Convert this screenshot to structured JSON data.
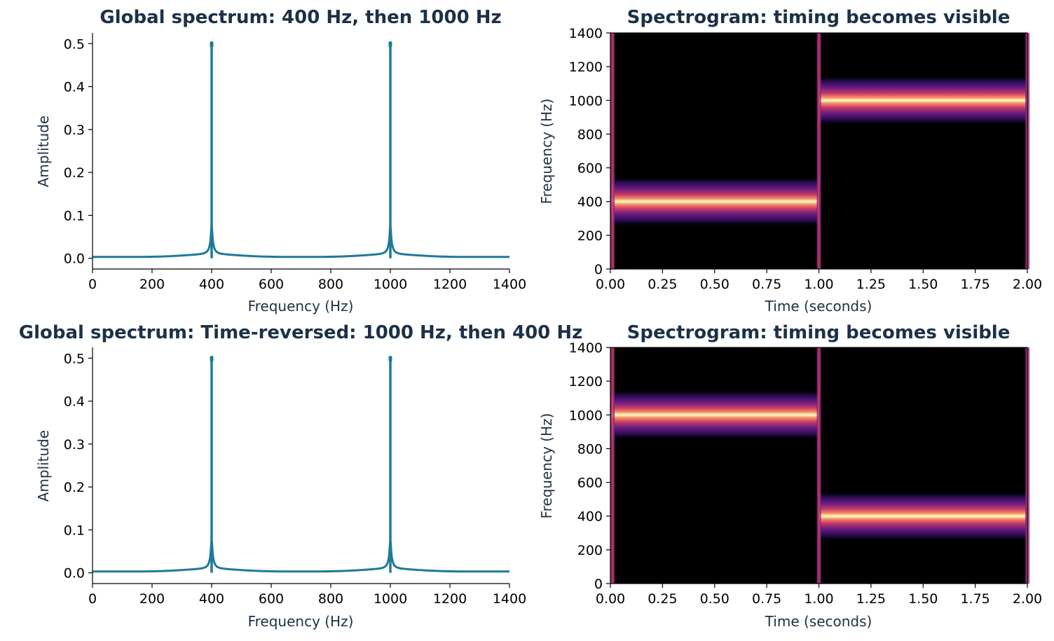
{
  "colors": {
    "spectrum_line": "#1f7a99",
    "text_dark": "#1c3147",
    "spec_low": "#000000",
    "spec_mid": "#5c1f7a",
    "spec_high": "#f8ffc7"
  },
  "chart_data": [
    {
      "type": "line",
      "title": "Global spectrum: 400 Hz, then 1000 Hz",
      "xlabel": "Frequency (Hz)",
      "ylabel": "Amplitude",
      "xlim": [
        0,
        1400
      ],
      "ylim": [
        -0.025,
        0.525
      ],
      "xticks": [
        "0",
        "200",
        "400",
        "600",
        "800",
        "1000",
        "1200",
        "1400"
      ],
      "yticks": [
        "0.0",
        "0.1",
        "0.2",
        "0.3",
        "0.4",
        "0.5"
      ],
      "grid": false,
      "peaks": [
        {
          "x": 400,
          "y": 0.5
        },
        {
          "x": 1000,
          "y": 0.5
        }
      ]
    },
    {
      "type": "heatmap",
      "title": "Spectrogram: timing becomes visible",
      "xlabel": "Time (seconds)",
      "ylabel": "Frequency (Hz)",
      "xlim": [
        0,
        2
      ],
      "ylim": [
        0,
        1400
      ],
      "xticks": [
        "0.00",
        "0.25",
        "0.50",
        "0.75",
        "1.00",
        "1.25",
        "1.50",
        "1.75",
        "2.00"
      ],
      "yticks": [
        "0",
        "200",
        "400",
        "600",
        "800",
        "1000",
        "1200",
        "1400"
      ],
      "segments": [
        {
          "t_start": 0.0,
          "t_end": 1.0,
          "freq": 400
        },
        {
          "t_start": 1.0,
          "t_end": 2.0,
          "freq": 1000
        }
      ]
    },
    {
      "type": "line",
      "title": "Global spectrum: Time-reversed: 1000 Hz, then 400 Hz",
      "xlabel": "Frequency (Hz)",
      "ylabel": "Amplitude",
      "xlim": [
        0,
        1400
      ],
      "ylim": [
        -0.025,
        0.525
      ],
      "xticks": [
        "0",
        "200",
        "400",
        "600",
        "800",
        "1000",
        "1200",
        "1400"
      ],
      "yticks": [
        "0.0",
        "0.1",
        "0.2",
        "0.3",
        "0.4",
        "0.5"
      ],
      "grid": false,
      "peaks": [
        {
          "x": 400,
          "y": 0.5
        },
        {
          "x": 1000,
          "y": 0.5
        }
      ]
    },
    {
      "type": "heatmap",
      "title": "Spectrogram: timing becomes visible",
      "xlabel": "Time (seconds)",
      "ylabel": "Frequency (Hz)",
      "xlim": [
        0,
        2
      ],
      "ylim": [
        0,
        1400
      ],
      "xticks": [
        "0.00",
        "0.25",
        "0.50",
        "0.75",
        "1.00",
        "1.25",
        "1.50",
        "1.75",
        "2.00"
      ],
      "yticks": [
        "0",
        "200",
        "400",
        "600",
        "800",
        "1000",
        "1200",
        "1400"
      ],
      "segments": [
        {
          "t_start": 0.0,
          "t_end": 1.0,
          "freq": 1000
        },
        {
          "t_start": 1.0,
          "t_end": 2.0,
          "freq": 400
        }
      ]
    }
  ]
}
